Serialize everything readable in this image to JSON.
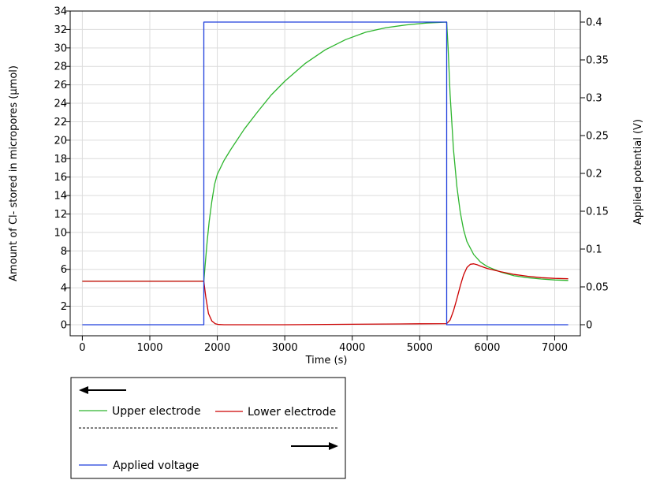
{
  "chart_data": {
    "type": "line",
    "xlabel": "Time (s)",
    "ylabel": "Amount of Cl- stored in micropores (µmol)",
    "y2label": "Applied potential (V)",
    "xlim": [
      -180,
      7380
    ],
    "ylim": [
      -1.2,
      34
    ],
    "y2lim": [
      -0.0146,
      0.4146
    ],
    "xticks": [
      0,
      1000,
      2000,
      3000,
      4000,
      5000,
      6000,
      7000
    ],
    "yticks": [
      0,
      2,
      4,
      6,
      8,
      10,
      12,
      14,
      16,
      18,
      20,
      22,
      24,
      26,
      28,
      30,
      32,
      34
    ],
    "y2ticks": [
      0,
      0.05,
      0.1,
      0.15,
      0.2,
      0.25,
      0.3,
      0.35,
      0.4
    ],
    "y2tick_labels": [
      "0",
      "0.05",
      "0.1",
      "0.15",
      "0.2",
      "0.25",
      "0.3",
      "0.35",
      "0.4"
    ],
    "grid": true,
    "legend_position": "below-left",
    "series": [
      {
        "name": "Upper electrode",
        "axis": "left",
        "color": "#2db52d",
        "x": [
          0,
          1800,
          1820,
          1850,
          1880,
          1920,
          1960,
          2000,
          2100,
          2200,
          2400,
          2600,
          2800,
          3000,
          3300,
          3600,
          3900,
          4200,
          4500,
          4800,
          5100,
          5400,
          5420,
          5450,
          5500,
          5550,
          5600,
          5650,
          5700,
          5800,
          5900,
          6000,
          6200,
          6400,
          6600,
          6800,
          7000,
          7200
        ],
        "y": [
          4.7,
          4.7,
          6.5,
          9.0,
          11.2,
          13.4,
          15.2,
          16.3,
          17.8,
          19.0,
          21.2,
          23.1,
          24.9,
          26.4,
          28.3,
          29.8,
          30.9,
          31.7,
          32.2,
          32.5,
          32.7,
          32.8,
          30.0,
          25.0,
          19.0,
          15.0,
          12.2,
          10.3,
          9.0,
          7.6,
          6.8,
          6.3,
          5.7,
          5.3,
          5.1,
          4.95,
          4.85,
          4.8
        ]
      },
      {
        "name": "Lower electrode",
        "axis": "left",
        "color": "#cc0000",
        "x": [
          0,
          1800,
          1830,
          1870,
          1920,
          1970,
          2020,
          2100,
          3000,
          4000,
          5000,
          5400,
          5450,
          5500,
          5550,
          5600,
          5650,
          5700,
          5750,
          5800,
          5850,
          5900,
          6000,
          6200,
          6400,
          6600,
          6800,
          7000,
          7200
        ],
        "y": [
          4.7,
          4.7,
          3.0,
          1.2,
          0.4,
          0.1,
          0.02,
          0.0,
          0.0,
          0.05,
          0.1,
          0.12,
          0.5,
          1.5,
          2.8,
          4.2,
          5.4,
          6.2,
          6.55,
          6.6,
          6.5,
          6.35,
          6.1,
          5.75,
          5.45,
          5.25,
          5.1,
          5.02,
          4.98
        ]
      },
      {
        "name": "Applied voltage",
        "axis": "right",
        "color": "#1f3fdc",
        "x": [
          0,
          1800,
          1800,
          5400,
          5400,
          7200
        ],
        "y": [
          0,
          0,
          0.4,
          0.4,
          0,
          0
        ]
      }
    ]
  }
}
